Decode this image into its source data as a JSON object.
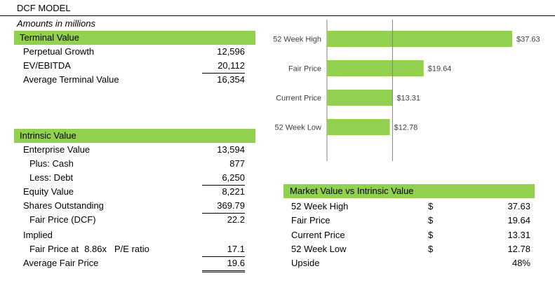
{
  "sheet": {
    "title": "DCF MODEL",
    "subtitle": "Amounts in millions"
  },
  "terminal": {
    "header": "Terminal Value",
    "rows": [
      {
        "label": "Perpetual Growth",
        "value": "12,596"
      },
      {
        "label": "EV/EBITDA",
        "value": "20,112"
      },
      {
        "label": "Average Terminal Value",
        "value": "16,354"
      }
    ]
  },
  "intrinsic": {
    "header": "Intrinsic Value",
    "rows": [
      {
        "label": "Enterprise Value",
        "value": "13,594"
      },
      {
        "label": "Plus: Cash",
        "value": "877"
      },
      {
        "label": "Less: Debt",
        "value": "6,250"
      },
      {
        "label": "Equity Value",
        "value": "8,221"
      },
      {
        "label": "Shares Outstanding",
        "value": "369.79"
      },
      {
        "label": "Fair Price (DCF)",
        "value": "22.2"
      },
      {
        "label": "Implied",
        "value": ""
      },
      {
        "label": "Fair Price at",
        "value": "17.1"
      },
      {
        "label": "Average Fair Price",
        "value": "19.6"
      }
    ],
    "pe_multiple": "8.86x",
    "pe_label": "P/E ratio"
  },
  "market": {
    "header": "Market Value vs Intrinsic Value",
    "currency": "$",
    "rows": [
      {
        "label": "52 Week High",
        "value": "37.63"
      },
      {
        "label": "Fair Price",
        "value": "19.64"
      },
      {
        "label": "Current Price",
        "value": "13.31"
      },
      {
        "label": "52 Week Low",
        "value": "12.78"
      }
    ],
    "upside_label": "Upside",
    "upside_value": "48%"
  },
  "colors": {
    "band": "#92d050",
    "bar": "#92d050",
    "axis": "#808080"
  },
  "chart_data": {
    "type": "bar",
    "orientation": "horizontal",
    "categories": [
      "52 Week High",
      "Fair Price",
      "Current Price",
      "52 Week Low"
    ],
    "values": [
      37.63,
      19.64,
      13.31,
      12.78
    ],
    "data_labels": [
      "$37.63",
      "$19.64",
      "$13.31",
      "$12.78"
    ],
    "reference_line": 13.31,
    "xlim": [
      0,
      37.63
    ],
    "grid": false,
    "legend": "none"
  }
}
